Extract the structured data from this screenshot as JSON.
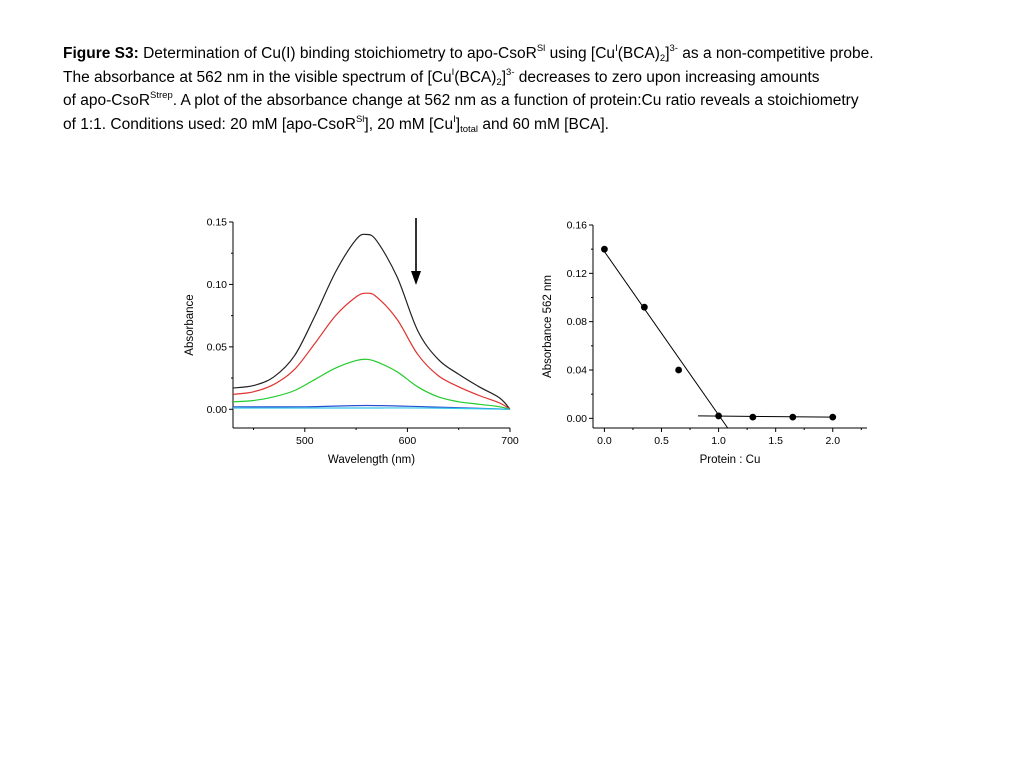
{
  "caption": {
    "fig_label": "Figure S3:",
    "l1_a": " Determination of Cu(I) binding stoichiometry to apo-CsoR",
    "l1_sl": "Sl",
    "l1_b": " using [Cu",
    "l1_I": "I",
    "l1_c": "(BCA)",
    "l1_2": "2",
    "l1_d": "]",
    "l1_3m": "3-",
    "l1_e": " as a non-competitive probe.",
    "l2_a": "The absorbance at 562 nm in the visible spectrum of [Cu",
    "l2_I": "I",
    "l2_b": "(BCA)",
    "l2_2": "2",
    "l2_c": "]",
    "l2_3m": "3-",
    "l2_d": " decreases to zero upon increasing amounts",
    "l3_a": "of apo-CsoR",
    "l3_strep": "Strep",
    "l3_b": ".  A  plot of the absorbance change at  562 nm as a function of protein:Cu ratio reveals a stoichiometry",
    "l4_a": "of 1:1. Conditions used: 20 mM [apo-CsoR",
    "l4_sl": "Sl",
    "l4_b": "], 20 mM [Cu",
    "l4_I": "I",
    "l4_c": "]",
    "l4_total": "total",
    "l4_d": " and 60 mM [BCA]."
  },
  "chart_data": [
    {
      "type": "line",
      "xlabel": "Wavelength (nm)",
      "ylabel": "Absorbance",
      "xlim": [
        430,
        700
      ],
      "ylim": [
        -0.015,
        0.15
      ],
      "xticks": [
        500,
        600,
        700
      ],
      "yticks": [
        0.0,
        0.05,
        0.1,
        0.15
      ],
      "xtick_labels": [
        "500",
        "600",
        "700"
      ],
      "ytick_labels": [
        "0.00",
        "0.05",
        "0.10",
        "0.15"
      ],
      "annotation": "downward arrow indicating decreasing absorbance with added protein",
      "series": [
        {
          "color": "#222222",
          "x": [
            430,
            450,
            470,
            490,
            510,
            530,
            550,
            560,
            570,
            590,
            610,
            630,
            650,
            670,
            690,
            700
          ],
          "y": [
            0.017,
            0.019,
            0.026,
            0.043,
            0.075,
            0.11,
            0.136,
            0.14,
            0.135,
            0.106,
            0.063,
            0.04,
            0.028,
            0.018,
            0.009,
            0.0
          ]
        },
        {
          "color": "#e0322e",
          "x": [
            430,
            450,
            470,
            490,
            510,
            530,
            550,
            560,
            570,
            590,
            610,
            630,
            650,
            670,
            690,
            700
          ],
          "y": [
            0.012,
            0.014,
            0.02,
            0.032,
            0.053,
            0.075,
            0.09,
            0.093,
            0.09,
            0.072,
            0.044,
            0.027,
            0.018,
            0.011,
            0.005,
            0.0
          ]
        },
        {
          "color": "#22cc2c",
          "x": [
            430,
            450,
            470,
            490,
            510,
            530,
            550,
            560,
            570,
            590,
            610,
            630,
            650,
            670,
            690,
            700
          ],
          "y": [
            0.006,
            0.007,
            0.01,
            0.015,
            0.024,
            0.033,
            0.039,
            0.04,
            0.038,
            0.03,
            0.018,
            0.01,
            0.006,
            0.004,
            0.002,
            0.0
          ]
        },
        {
          "color": "#2a50d0",
          "x": [
            430,
            500,
            560,
            620,
            700
          ],
          "y": [
            0.002,
            0.002,
            0.003,
            0.002,
            0.0
          ]
        },
        {
          "color": "#30c8e8",
          "x": [
            430,
            500,
            560,
            620,
            700
          ],
          "y": [
            0.001,
            0.001,
            0.001,
            0.001,
            0.0
          ]
        }
      ]
    },
    {
      "type": "scatter",
      "xlabel": "Protein : Cu",
      "ylabel": "Absorbance 562 nm",
      "xlim": [
        -0.1,
        2.3
      ],
      "ylim": [
        -0.008,
        0.16
      ],
      "xticks": [
        0.0,
        0.5,
        1.0,
        1.5,
        2.0
      ],
      "yticks": [
        0.0,
        0.04,
        0.08,
        0.12,
        0.16
      ],
      "xtick_labels": [
        "0.0",
        "0.5",
        "1.0",
        "1.5",
        "2.0"
      ],
      "ytick_labels": [
        "0.00",
        "0.04",
        "0.08",
        "0.12",
        "0.16"
      ],
      "points": {
        "x": [
          0.0,
          0.35,
          0.65,
          1.0,
          1.3,
          1.65,
          2.0
        ],
        "y": [
          0.14,
          0.092,
          0.04,
          0.002,
          0.001,
          0.001,
          0.001
        ]
      },
      "fit_lines": [
        {
          "x": [
            0.0,
            1.08
          ],
          "y": [
            0.138,
            -0.008
          ]
        },
        {
          "x": [
            0.82,
            2.0
          ],
          "y": [
            0.002,
            0.001
          ]
        }
      ]
    }
  ]
}
